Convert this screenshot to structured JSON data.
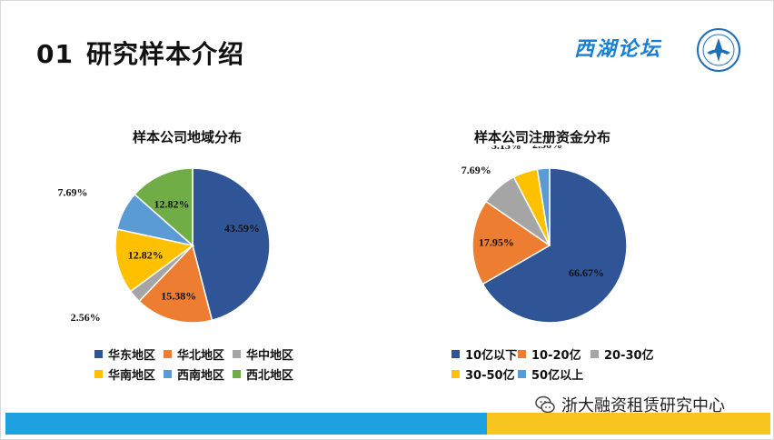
{
  "slide": {
    "title_num": "01",
    "title_text": "研究样本介绍",
    "logo_text": "西湖论坛",
    "watermark": "浙大融资租赁研究中心"
  },
  "chart_data": [
    {
      "type": "pie",
      "title": "样本公司地域分布",
      "labels": [
        "华东地区",
        "华北地区",
        "华中地区",
        "华南地区",
        "西南地区",
        "西北地区"
      ],
      "values": [
        43.59,
        15.38,
        2.56,
        12.82,
        7.69,
        12.82
      ],
      "value_labels": [
        "43.59%",
        "15.38%",
        "2.56%",
        "12.82%",
        "7.69%",
        "12.82%"
      ],
      "colors": [
        "#2f5597",
        "#ed7d31",
        "#a5a5a5",
        "#ffc000",
        "#5b9bd5",
        "#70ad47"
      ],
      "legend": "bottom"
    },
    {
      "type": "pie",
      "title": "样本公司注册资金分布",
      "labels": [
        "10亿以下",
        "10-20亿",
        "20-30亿",
        "30-50亿",
        "50亿以上"
      ],
      "values": [
        66.67,
        17.95,
        7.69,
        5.13,
        2.56
      ],
      "value_labels": [
        "66.67%",
        "17.95%",
        "7.69%",
        "5.13%",
        "2.56%"
      ],
      "colors": [
        "#2f5597",
        "#ed7d31",
        "#a5a5a5",
        "#ffc000",
        "#5b9bd5"
      ],
      "legend": "bottom"
    }
  ]
}
